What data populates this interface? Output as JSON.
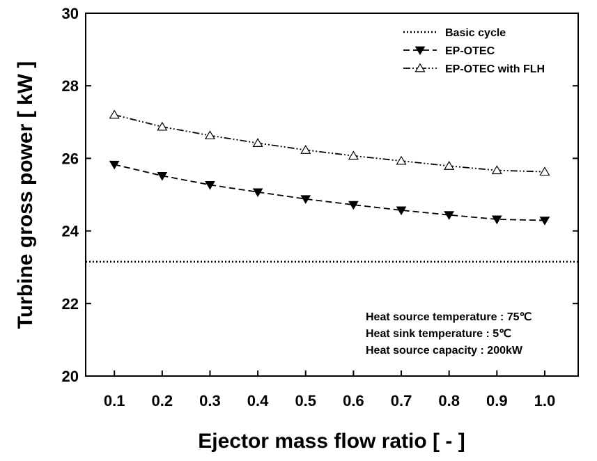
{
  "chart_data": {
    "type": "line",
    "xlabel": "Ejector mass flow ratio [ - ]",
    "ylabel": "Turbine gross power [ kW ]",
    "xlim": [
      0.04,
      1.07
    ],
    "ylim": [
      20,
      30
    ],
    "xticks": [
      "0.1",
      "0.2",
      "0.3",
      "0.4",
      "0.5",
      "0.6",
      "0.7",
      "0.8",
      "0.9",
      "1.0"
    ],
    "yticks": [
      "20",
      "22",
      "24",
      "26",
      "28",
      "30"
    ],
    "x": [
      0.1,
      0.2,
      0.3,
      0.4,
      0.5,
      0.6,
      0.7,
      0.8,
      0.9,
      1.0
    ],
    "series": [
      {
        "name": "Basic cycle",
        "style": "dotted",
        "marker": "none",
        "values": [
          23.15,
          23.15,
          23.15,
          23.15,
          23.15,
          23.15,
          23.15,
          23.15,
          23.15,
          23.15
        ]
      },
      {
        "name": "EP-OTEC",
        "style": "dashed",
        "marker": "filled-down-triangle",
        "values": [
          25.83,
          25.52,
          25.27,
          25.07,
          24.88,
          24.72,
          24.57,
          24.44,
          24.32,
          24.29
        ]
      },
      {
        "name": "EP-OTEC with FLH",
        "style": "dash-dot-dot",
        "marker": "open-up-triangle",
        "values": [
          27.2,
          26.87,
          26.63,
          26.42,
          26.23,
          26.07,
          25.93,
          25.79,
          25.67,
          25.63
        ]
      }
    ],
    "legend_position": "top-right",
    "annotations": [
      "Heat source temperature : 75℃",
      "Heat sink temperature : 5℃",
      "Heat source capacity : 200kW"
    ],
    "grid": false
  }
}
